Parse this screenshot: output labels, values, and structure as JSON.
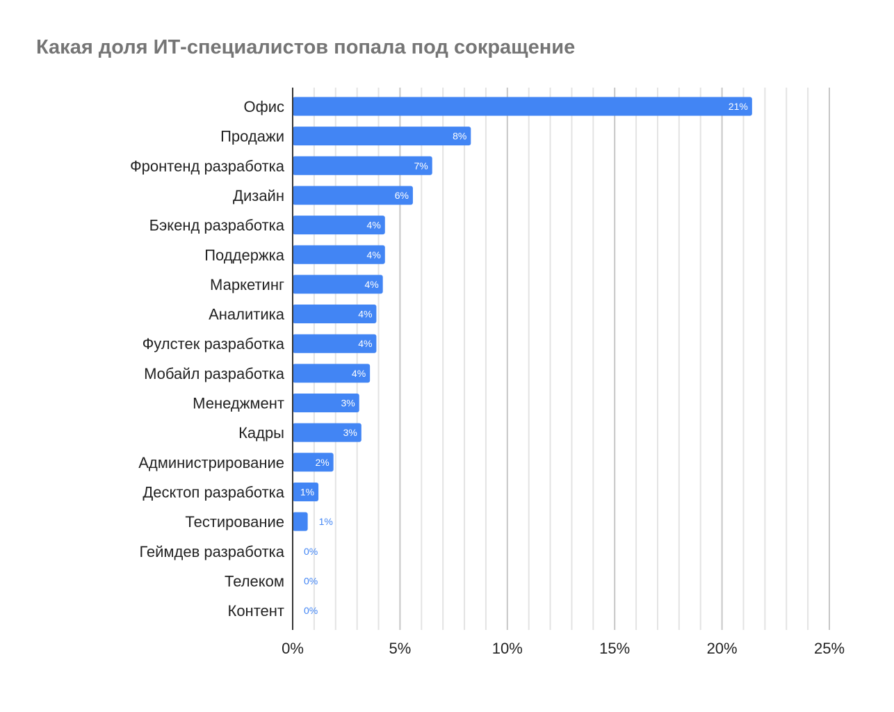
{
  "chart_data": {
    "type": "bar",
    "orientation": "horizontal",
    "title": "Какая доля ИТ-специалистов попала под сокращение",
    "categories": [
      "Офис",
      "Продажи",
      "Фронтенд разработка",
      "Дизайн",
      "Бэкенд разработка",
      "Поддержка",
      "Маркетинг",
      "Аналитика",
      "Фулстек разработка",
      "Мобайл разработка",
      "Менеджмент",
      "Кадры",
      "Администрирование",
      "Десктоп разработка",
      "Тестирование",
      "Геймдев разработка",
      "Телеком",
      "Контент"
    ],
    "values": [
      21.4,
      8.3,
      6.5,
      5.6,
      4.3,
      4.3,
      4.2,
      3.9,
      3.9,
      3.6,
      3.1,
      3.2,
      1.9,
      1.2,
      0.7,
      0,
      0,
      0
    ],
    "data_labels": [
      "21%",
      "8%",
      "7%",
      "6%",
      "4%",
      "4%",
      "4%",
      "4%",
      "4%",
      "4%",
      "3%",
      "3%",
      "2%",
      "1%",
      "1%",
      "0%",
      "0%",
      "0%"
    ],
    "xlim": [
      0,
      25
    ],
    "x_ticks": [
      "0%",
      "5%",
      "10%",
      "15%",
      "20%",
      "25%"
    ],
    "xlabel": "",
    "ylabel": "",
    "grid": true,
    "legend": "none",
    "colors": {
      "bar": "#4285f4",
      "title": "#757575"
    }
  }
}
